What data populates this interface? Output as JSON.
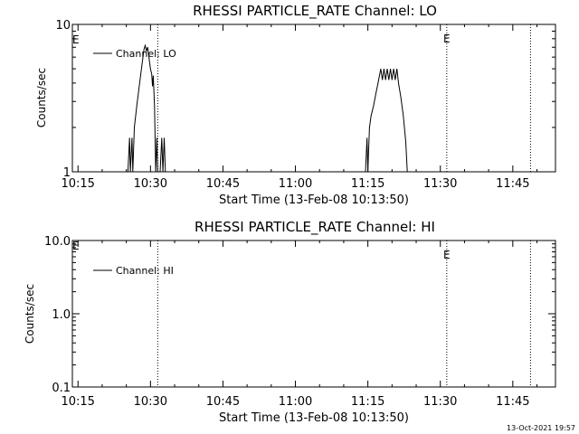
{
  "timestamp": "13-Oct-2021 19:57",
  "chart_data": [
    {
      "type": "line",
      "title": "RHESSI PARTICLE_RATE Channel: LO",
      "xlabel": "Start Time (13-Feb-08 10:13:50)",
      "ylabel": "Counts/sec",
      "yscale": "log",
      "xlim": [
        "10:13:50",
        "11:53:50"
      ],
      "ylim": [
        1,
        10
      ],
      "xticks": [
        "10:15",
        "10:30",
        "10:45",
        "11:00",
        "11:15",
        "11:30",
        "11:45"
      ],
      "yticks": [
        "1",
        "10"
      ],
      "legend": {
        "position": "top-left",
        "label": "Channel: LO"
      },
      "event_lines": [
        {
          "time": "10:31:30",
          "label": ""
        },
        {
          "time": "11:31:20",
          "label": "E"
        },
        {
          "time": "11:48:40",
          "label": ""
        }
      ],
      "start_marker": "E",
      "series": [
        {
          "name": "Channel: LO",
          "points": [
            [
              "10:25:20",
              1.0
            ],
            [
              "10:25:40",
              1.7
            ],
            [
              "10:25:50",
              1.0
            ],
            [
              "10:26:10",
              1.7
            ],
            [
              "10:26:20",
              1.0
            ],
            [
              "10:26:40",
              2.0
            ],
            [
              "10:27:10",
              2.8
            ],
            [
              "10:27:40",
              3.8
            ],
            [
              "10:28:00",
              4.6
            ],
            [
              "10:28:20",
              5.6
            ],
            [
              "10:28:40",
              6.8
            ],
            [
              "10:28:55",
              7.2
            ],
            [
              "10:29:10",
              6.6
            ],
            [
              "10:29:25",
              7.0
            ],
            [
              "10:29:40",
              6.0
            ],
            [
              "10:30:00",
              5.0
            ],
            [
              "10:30:15",
              4.6
            ],
            [
              "10:30:25",
              3.8
            ],
            [
              "10:30:35",
              4.5
            ],
            [
              "10:30:50",
              2.8
            ],
            [
              "10:31:05",
              1.0
            ],
            [
              "10:31:20",
              1.7
            ],
            [
              "10:31:30",
              1.0
            ],
            [
              "10:32:00",
              1.0
            ],
            [
              "10:32:20",
              1.7
            ],
            [
              "10:32:35",
              1.0
            ],
            [
              "10:32:50",
              1.7
            ],
            [
              "10:33:05",
              1.0
            ],
            [
              "11:14:30",
              1.0
            ],
            [
              "11:14:50",
              1.7
            ],
            [
              "11:15:00",
              1.0
            ],
            [
              "11:15:20",
              2.0
            ],
            [
              "11:15:40",
              2.4
            ],
            [
              "11:16:10",
              2.8
            ],
            [
              "11:16:40",
              3.4
            ],
            [
              "11:17:10",
              4.1
            ],
            [
              "11:17:40",
              5.0
            ],
            [
              "11:18:00",
              4.2
            ],
            [
              "11:18:20",
              5.0
            ],
            [
              "11:18:40",
              4.2
            ],
            [
              "11:19:00",
              5.0
            ],
            [
              "11:19:20",
              4.2
            ],
            [
              "11:19:40",
              5.0
            ],
            [
              "11:20:00",
              4.2
            ],
            [
              "11:20:20",
              5.0
            ],
            [
              "11:20:40",
              4.2
            ],
            [
              "11:21:00",
              5.0
            ],
            [
              "11:21:20",
              4.0
            ],
            [
              "11:21:50",
              3.2
            ],
            [
              "11:22:20",
              2.4
            ],
            [
              "11:22:50",
              1.6
            ],
            [
              "11:23:10",
              1.0
            ]
          ]
        }
      ]
    },
    {
      "type": "line",
      "title": "RHESSI PARTICLE_RATE Channel: HI",
      "xlabel": "Start Time (13-Feb-08 10:13:50)",
      "ylabel": "Counts/sec",
      "yscale": "log",
      "xlim": [
        "10:13:50",
        "11:53:50"
      ],
      "ylim": [
        0.1,
        10
      ],
      "xticks": [
        "10:15",
        "10:30",
        "10:45",
        "11:00",
        "11:15",
        "11:30",
        "11:45"
      ],
      "yticks": [
        "0.1",
        "1.0",
        "10.0"
      ],
      "legend": {
        "position": "top-left",
        "label": "Channel: HI"
      },
      "event_lines": [
        {
          "time": "10:31:30",
          "label": ""
        },
        {
          "time": "11:31:20",
          "label": "E"
        },
        {
          "time": "11:48:40",
          "label": ""
        }
      ],
      "start_marker": "E",
      "series": [
        {
          "name": "Channel: HI",
          "points": []
        }
      ]
    }
  ]
}
